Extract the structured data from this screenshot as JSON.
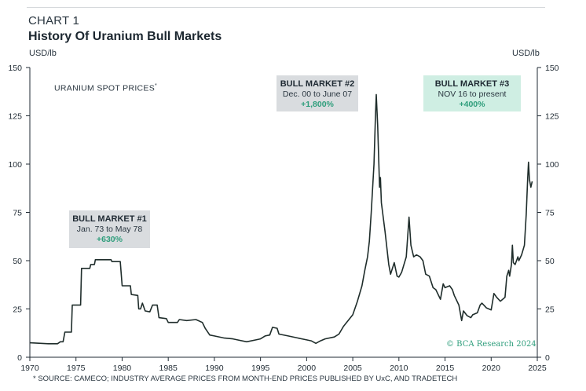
{
  "header": {
    "chart_label": "CHART 1",
    "title": "History Of Uranium Bull Markets"
  },
  "colors": {
    "line": "#1f2d2b",
    "accent_green": "#2f9e7c",
    "box_gray": "#d9dcdf",
    "box_green": "#cfeee3"
  },
  "chart_data": {
    "type": "line",
    "title": "History Of Uranium Bull Markets",
    "ylabel": "USD/lb",
    "y2label": "USD/lb",
    "xlim": [
      1970,
      2025
    ],
    "ylim": [
      0,
      150
    ],
    "x_ticks": [
      "1970",
      "1975",
      "1980",
      "1985",
      "1990",
      "1995",
      "2000",
      "2005",
      "2010",
      "2015",
      "2020",
      "2025"
    ],
    "y_ticks": [
      "0",
      "25",
      "50",
      "75",
      "100",
      "125",
      "150"
    ],
    "grid": false,
    "series": [
      {
        "name": "URANIUM SPOT PRICES",
        "points": [
          [
            1970,
            7.5
          ],
          [
            1972,
            7
          ],
          [
            1973,
            7
          ],
          [
            1973.3,
            8
          ],
          [
            1973.6,
            8
          ],
          [
            1973.8,
            13
          ],
          [
            1974.5,
            13
          ],
          [
            1974.6,
            27
          ],
          [
            1975.5,
            27
          ],
          [
            1975.6,
            46
          ],
          [
            1976.5,
            46
          ],
          [
            1976.6,
            48
          ],
          [
            1977,
            48
          ],
          [
            1977.1,
            50.5
          ],
          [
            1978.8,
            50.5
          ],
          [
            1978.9,
            49.5
          ],
          [
            1979.8,
            49.5
          ],
          [
            1980,
            37
          ],
          [
            1980.9,
            37
          ],
          [
            1981,
            32.5
          ],
          [
            1981.7,
            32
          ],
          [
            1981.8,
            25
          ],
          [
            1982,
            25
          ],
          [
            1982.2,
            28
          ],
          [
            1982.5,
            24
          ],
          [
            1983,
            23.5
          ],
          [
            1983.3,
            27
          ],
          [
            1983.8,
            27
          ],
          [
            1984,
            20.5
          ],
          [
            1984.8,
            20
          ],
          [
            1985,
            18
          ],
          [
            1986,
            18
          ],
          [
            1986.2,
            19.5
          ],
          [
            1987,
            19
          ],
          [
            1988,
            19.5
          ],
          [
            1988.7,
            18
          ],
          [
            1989,
            15
          ],
          [
            1989.5,
            11.5
          ],
          [
            1990,
            11
          ],
          [
            1991,
            10
          ],
          [
            1992,
            9.5
          ],
          [
            1992.5,
            9
          ],
          [
            1993.5,
            8
          ],
          [
            1994.5,
            9
          ],
          [
            1995,
            9.5
          ],
          [
            1995.5,
            11
          ],
          [
            1996,
            11.5
          ],
          [
            1996.3,
            15.5
          ],
          [
            1996.8,
            15
          ],
          [
            1997,
            12
          ],
          [
            1998,
            11
          ],
          [
            1999,
            10
          ],
          [
            2000,
            9
          ],
          [
            2000.5,
            8.5
          ],
          [
            2001,
            7.2
          ],
          [
            2001.5,
            8.5
          ],
          [
            2002,
            9.5
          ],
          [
            2003,
            10.5
          ],
          [
            2003.5,
            12
          ],
          [
            2004,
            16
          ],
          [
            2004.5,
            19
          ],
          [
            2005,
            22
          ],
          [
            2005.5,
            29
          ],
          [
            2006,
            37
          ],
          [
            2006.3,
            45
          ],
          [
            2006.6,
            52
          ],
          [
            2006.8,
            60
          ],
          [
            2007,
            75
          ],
          [
            2007.3,
            100
          ],
          [
            2007.45,
            124
          ],
          [
            2007.55,
            136
          ],
          [
            2007.7,
            120
          ],
          [
            2007.9,
            88
          ],
          [
            2008,
            93
          ],
          [
            2008.1,
            80
          ],
          [
            2008.5,
            65
          ],
          [
            2008.9,
            48
          ],
          [
            2009.1,
            43
          ],
          [
            2009.5,
            49
          ],
          [
            2009.8,
            42
          ],
          [
            2010,
            41.5
          ],
          [
            2010.3,
            44
          ],
          [
            2010.8,
            52
          ],
          [
            2011,
            66
          ],
          [
            2011.1,
            72.5
          ],
          [
            2011.3,
            58
          ],
          [
            2011.6,
            52
          ],
          [
            2011.9,
            53
          ],
          [
            2012.3,
            52
          ],
          [
            2012.6,
            50
          ],
          [
            2012.9,
            43
          ],
          [
            2013.3,
            42
          ],
          [
            2013.7,
            36
          ],
          [
            2014,
            35
          ],
          [
            2014.5,
            30
          ],
          [
            2014.8,
            38
          ],
          [
            2015,
            36
          ],
          [
            2015.5,
            37
          ],
          [
            2015.8,
            35
          ],
          [
            2016,
            32
          ],
          [
            2016.5,
            27
          ],
          [
            2016.8,
            19
          ],
          [
            2017,
            24
          ],
          [
            2017.4,
            21.5
          ],
          [
            2017.8,
            20.5
          ],
          [
            2018,
            22
          ],
          [
            2018.5,
            23
          ],
          [
            2018.8,
            27
          ],
          [
            2019,
            28
          ],
          [
            2019.5,
            25.5
          ],
          [
            2020,
            24.5
          ],
          [
            2020.3,
            33
          ],
          [
            2020.6,
            31
          ],
          [
            2021,
            29
          ],
          [
            2021.5,
            31
          ],
          [
            2021.7,
            42
          ],
          [
            2021.9,
            45
          ],
          [
            2022,
            42
          ],
          [
            2022.2,
            48
          ],
          [
            2022.3,
            58
          ],
          [
            2022.4,
            49
          ],
          [
            2022.6,
            48
          ],
          [
            2022.9,
            52
          ],
          [
            2023,
            50
          ],
          [
            2023.3,
            53
          ],
          [
            2023.6,
            58
          ],
          [
            2023.8,
            74
          ],
          [
            2023.95,
            92
          ],
          [
            2024.05,
            101
          ],
          [
            2024.15,
            92
          ],
          [
            2024.3,
            88
          ],
          [
            2024.45,
            91
          ]
        ]
      }
    ],
    "series_label": "URANIUM SPOT PRICES",
    "series_label_mark": "*",
    "annotations": [
      {
        "title": "BULL MARKET #1",
        "dates": "Jan. 73 to May 78",
        "change": "+630%"
      },
      {
        "title": "BULL MARKET #2",
        "dates": "Dec. 00 to June 07",
        "change": "+1,800%"
      },
      {
        "title": "BULL MARKET #3",
        "dates": "NOV 16 to present",
        "change": "+400%"
      }
    ]
  },
  "credit": "© BCA Research 2024",
  "source": "* SOURCE: CAMECO; INDUSTRY AVERAGE PRICES FROM MONTH-END PRICES PUBLISHED BY UxC, AND TRADETECH"
}
